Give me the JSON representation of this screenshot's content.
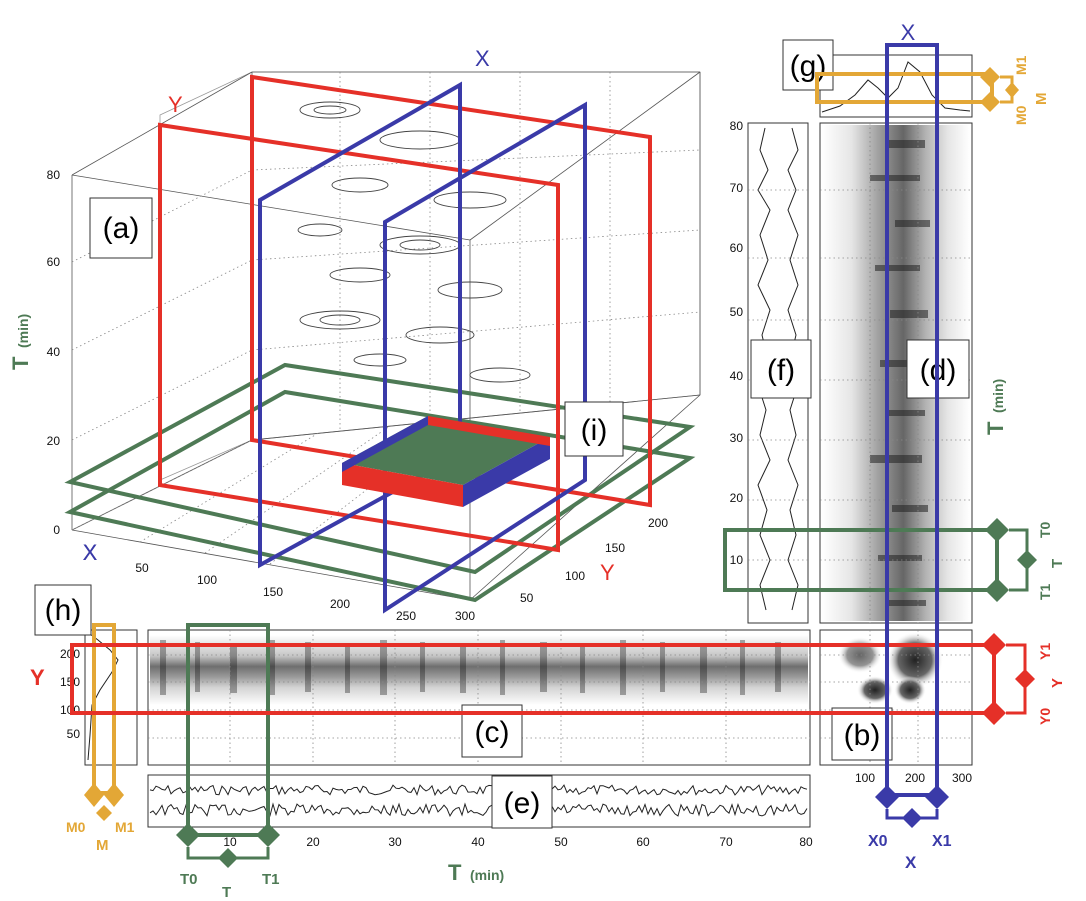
{
  "colors": {
    "x": "#3a3aa8",
    "y": "#e53028",
    "t": "#4e7a55",
    "m": "#e3a736"
  },
  "panels": {
    "a": "(a)",
    "b": "(b)",
    "c": "(c)",
    "d": "(d)",
    "e": "(e)",
    "f": "(f)",
    "g": "(g)",
    "h": "(h)",
    "i": "(i)"
  },
  "cube": {
    "t_label": "T",
    "t_unit": "(min)",
    "t_ticks": [
      "0",
      "20",
      "40",
      "60",
      "80"
    ],
    "x_axis_label": "X",
    "x_ticks": [
      "50",
      "100",
      "150",
      "200",
      "250",
      "300"
    ],
    "y_axis_label": "Y",
    "y_ticks": [
      "50",
      "100",
      "150",
      "200"
    ],
    "plane_x_label": "X",
    "plane_y_label": "Y"
  },
  "panel_h": {
    "axis_label": "X",
    "y_label": "Y",
    "y_ticks": [
      "50",
      "100",
      "150",
      "200"
    ],
    "m0": "M0",
    "m1": "M1",
    "m": "M"
  },
  "panel_c": {
    "t_label": "T",
    "t_unit": "(min)",
    "t_ticks": [
      "10",
      "20",
      "30",
      "40",
      "50",
      "60",
      "70",
      "80"
    ],
    "t0": "T0",
    "t1": "T1",
    "t": "T"
  },
  "panel_b": {
    "x_ticks": [
      "100",
      "200",
      "300"
    ],
    "y0": "Y0",
    "y1": "Y1",
    "y": "Y",
    "x0": "X0",
    "x1": "X1",
    "x": "X"
  },
  "panel_d": {
    "t_label": "T",
    "t_unit": "(min)",
    "t_ticks": [
      "10",
      "20",
      "30",
      "40",
      "50",
      "60",
      "70",
      "80"
    ],
    "x_top": "X",
    "t0": "T0",
    "t1": "T1",
    "t": "T"
  },
  "panel_g": {
    "m0": "M0",
    "m1": "M1",
    "m": "M"
  }
}
